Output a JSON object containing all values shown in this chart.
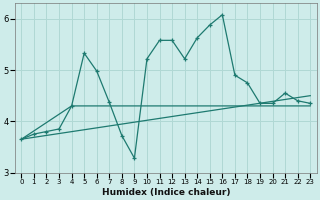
{
  "xlabel": "Humidex (Indice chaleur)",
  "xlim": [
    -0.5,
    23.5
  ],
  "ylim": [
    3.0,
    6.3
  ],
  "yticks": [
    3,
    4,
    5,
    6
  ],
  "xticks": [
    0,
    1,
    2,
    3,
    4,
    5,
    6,
    7,
    8,
    9,
    10,
    11,
    12,
    13,
    14,
    15,
    16,
    17,
    18,
    19,
    20,
    21,
    22,
    23
  ],
  "bg_color": "#ceecea",
  "grid_color": "#b0d8d4",
  "line_color": "#1e7a70",
  "line1_x": [
    0,
    1,
    2,
    3,
    4,
    5,
    6,
    7,
    8,
    9,
    10,
    11,
    12,
    13,
    14,
    15,
    16,
    17,
    18,
    19,
    20,
    21,
    22,
    23
  ],
  "line1_y": [
    3.65,
    3.75,
    3.8,
    3.85,
    4.3,
    5.33,
    4.98,
    4.37,
    3.72,
    3.28,
    5.22,
    5.58,
    5.58,
    5.22,
    5.63,
    5.88,
    6.08,
    4.9,
    4.75,
    4.35,
    4.35,
    4.55,
    4.4,
    4.35
  ],
  "line2_x": [
    0,
    4,
    23
  ],
  "line2_y": [
    3.65,
    4.3,
    4.3
  ],
  "line3_x": [
    0,
    23
  ],
  "line3_y": [
    3.65,
    4.5
  ]
}
